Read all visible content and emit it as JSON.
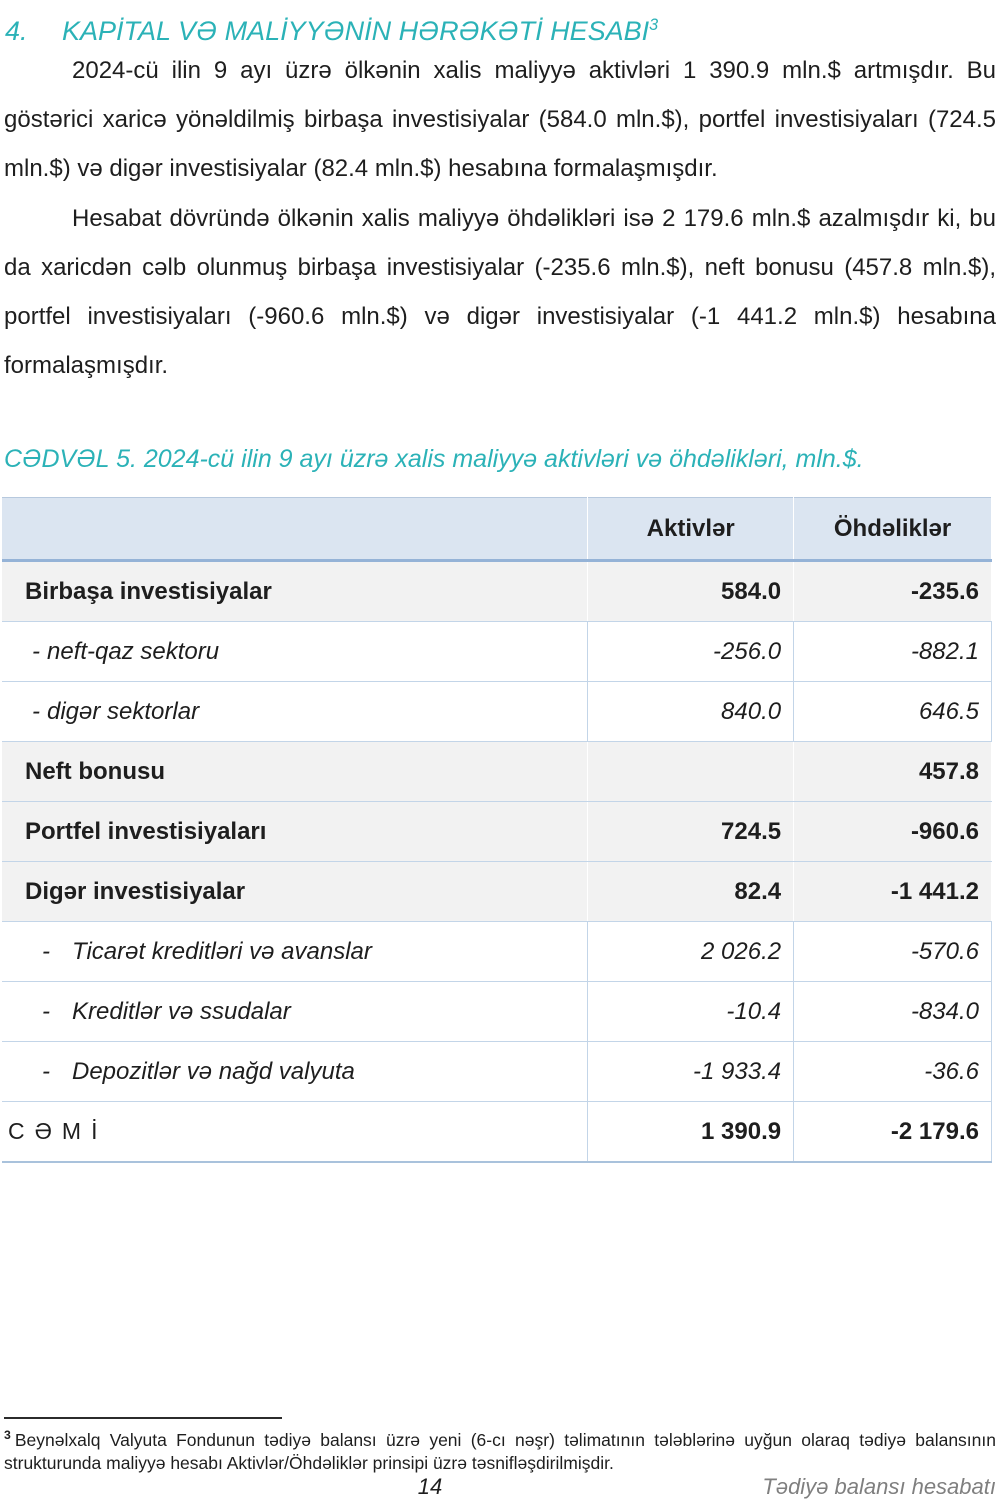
{
  "heading": {
    "number": "4.",
    "title": "KAPİTAL VƏ MALİYYƏNİN HƏRƏKƏTİ HESABI",
    "footnote_ref": "3"
  },
  "paragraphs": [
    "2024-cü ilin 9 ayı üzrə ölkənin xalis maliyyə aktivləri 1 390.9 mln.$ artmışdır. Bu göstərici xaricə yönəldilmiş birbaşa investisiyalar (584.0 mln.$), portfel investisiyaları (724.5 mln.$) və digər investisiyalar (82.4 mln.$) hesabına formalaşmışdır.",
    "Hesabat dövründə ölkənin xalis maliyyə öhdəlikləri isə 2 179.6 mln.$ azalmışdır ki, bu da xaricdən cəlb olunmuş birbaşa investisiyalar (-235.6 mln.$), neft bonusu (457.8 mln.$), portfel investisiyaları (-960.6 mln.$) və digər investisiyalar (-1 441.2 mln.$) hesabına formalaşmışdır."
  ],
  "table_caption": "CƏDVƏL 5. 2024-cü ilin 9 ayı üzrə xalis maliyyə aktivləri və öhdəlikləri, mln.$.",
  "table": {
    "columns": [
      "",
      "Aktivlər",
      "Öhdəliklər"
    ],
    "rows": [
      {
        "style": "main",
        "shaded": true,
        "prefix": "",
        "label": "Birbaşa investisiyalar",
        "assets": "584.0",
        "liabilities": "-235.6"
      },
      {
        "style": "sub",
        "shaded": false,
        "prefix": "-",
        "label": "neft-qaz sektoru",
        "assets": "-256.0",
        "liabilities": "-882.1"
      },
      {
        "style": "sub",
        "shaded": false,
        "prefix": "-",
        "label": "digər sektorlar",
        "assets": "840.0",
        "liabilities": "646.5"
      },
      {
        "style": "main",
        "shaded": true,
        "prefix": "",
        "label": "Neft bonusu",
        "assets": "",
        "liabilities": "457.8"
      },
      {
        "style": "main",
        "shaded": true,
        "prefix": "",
        "label": "Portfel investisiyaları",
        "assets": "724.5",
        "liabilities": "-960.6"
      },
      {
        "style": "main",
        "shaded": true,
        "prefix": "",
        "label": "Digər investisiyalar",
        "assets": "82.4",
        "liabilities": "-1 441.2"
      },
      {
        "style": "subwide",
        "shaded": false,
        "prefix": "-",
        "label": "Ticarət kreditləri və avanslar",
        "assets": "2 026.2",
        "liabilities": "-570.6"
      },
      {
        "style": "subwide",
        "shaded": false,
        "prefix": "-",
        "label": "Kreditlər və ssudalar",
        "assets": "-10.4",
        "liabilities": "-834.0"
      },
      {
        "style": "subwide",
        "shaded": false,
        "prefix": "-",
        "label": "Depozitlər və nağd valyuta",
        "assets": "-1 933.4",
        "liabilities": "-36.6"
      },
      {
        "style": "total",
        "shaded": false,
        "prefix": "",
        "label": "CƏMİ",
        "assets": "1 390.9",
        "liabilities": "-2 179.6"
      }
    ]
  },
  "footnote": {
    "ref": "3",
    "text": "Beynəlxalq Valyuta Fondunun tədiyə balansı üzrə yeni (6-cı nəşr) təlimatının tələblərinə uyğun olaraq tədiyə balansının strukturunda maliyyə hesabı Aktivlər/Öhdəliklər prinsipi üzrə təsnifləşdirilmişdir."
  },
  "footer": {
    "page_number": "14",
    "right_text": "Tədiyə balansı hesabatı"
  },
  "colors": {
    "accent_teal": "#2bb2b7",
    "header_bg": "#dbe5f1",
    "shaded_row": "#f2f2f2",
    "table_border": "#c3d5e8",
    "header_rule": "#95b3d7",
    "footer_text": "#7f7f7f"
  }
}
